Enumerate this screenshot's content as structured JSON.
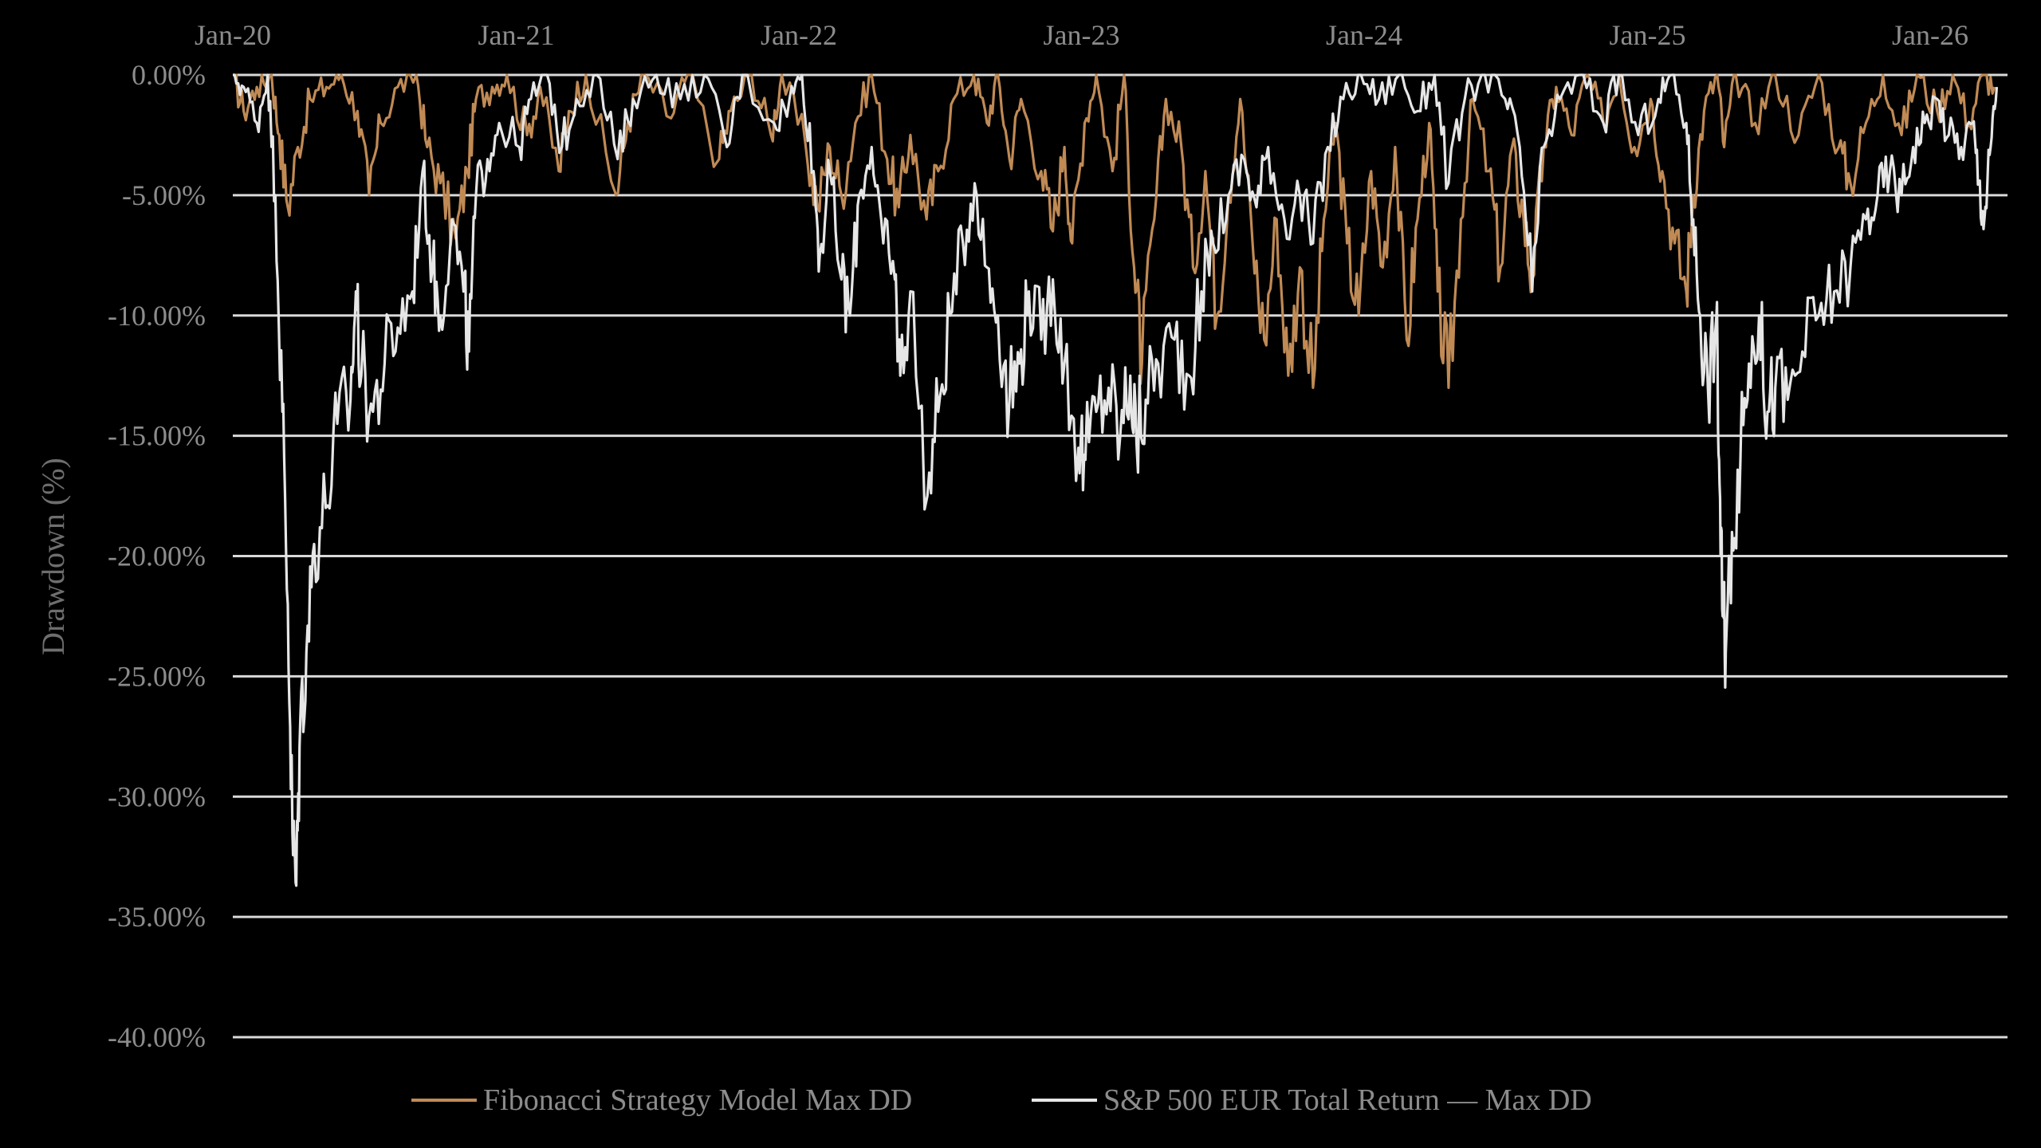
{
  "chart_data": {
    "type": "line",
    "title": "",
    "xlabel": "",
    "ylabel": "Drawdown (%)",
    "x_ticks": [
      "Jan-20",
      "Jan-21",
      "Jan-22",
      "Jan-23",
      "Jan-24",
      "Jan-25",
      "Jan-26"
    ],
    "y_ticks": [
      "0.00%",
      "-5.00%",
      "-10.00%",
      "-15.00%",
      "-20.00%",
      "-25.00%",
      "-30.00%",
      "-35.00%",
      "-40.00%"
    ],
    "xlim": [
      "2020-01-01",
      "2026-03-31"
    ],
    "ylim": [
      -40,
      0
    ],
    "grid": "horizontal",
    "legend_position": "bottom",
    "series": [
      {
        "name": "Fibonacci Strategy Model Max DD",
        "color": "#c08a55",
        "points": [
          [
            "2020-01-01",
            0
          ],
          [
            "2020-01-15",
            -1.5
          ],
          [
            "2020-02-01",
            -0.5
          ],
          [
            "2020-02-20",
            0
          ],
          [
            "2020-03-01",
            -2.5
          ],
          [
            "2020-03-12",
            -5.5
          ],
          [
            "2020-03-25",
            -3.0
          ],
          [
            "2020-04-10",
            -1.0
          ],
          [
            "2020-05-01",
            -0.5
          ],
          [
            "2020-05-20",
            0
          ],
          [
            "2020-06-10",
            -1.5
          ],
          [
            "2020-06-25",
            -5.0
          ],
          [
            "2020-07-10",
            -2.0
          ],
          [
            "2020-08-01",
            -0.5
          ],
          [
            "2020-08-25",
            0
          ],
          [
            "2020-09-08",
            -3.0
          ],
          [
            "2020-09-25",
            -4.5
          ],
          [
            "2020-10-15",
            -6.8
          ],
          [
            "2020-10-30",
            -4.0
          ],
          [
            "2020-11-10",
            -1.0
          ],
          [
            "2020-12-01",
            -0.5
          ],
          [
            "2020-12-20",
            0
          ],
          [
            "2021-01-15",
            -2.5
          ],
          [
            "2021-02-01",
            -0.5
          ],
          [
            "2021-02-25",
            -4.0
          ],
          [
            "2021-03-10",
            -1.5
          ],
          [
            "2021-04-01",
            0
          ],
          [
            "2021-05-10",
            -5.0
          ],
          [
            "2021-05-25",
            -2.0
          ],
          [
            "2021-06-15",
            0
          ],
          [
            "2021-07-20",
            -1.8
          ],
          [
            "2021-08-10",
            0
          ],
          [
            "2021-09-20",
            -3.5
          ],
          [
            "2021-10-05",
            -1.5
          ],
          [
            "2021-11-01",
            0
          ],
          [
            "2021-11-26",
            -2.5
          ],
          [
            "2021-12-10",
            0
          ],
          [
            "2022-01-10",
            -3.0
          ],
          [
            "2022-01-25",
            -5.5
          ],
          [
            "2022-02-10",
            -3.0
          ],
          [
            "2022-02-25",
            -5.0
          ],
          [
            "2022-03-15",
            -2.0
          ],
          [
            "2022-04-05",
            0
          ],
          [
            "2022-04-25",
            -3.5
          ],
          [
            "2022-05-10",
            -5.5
          ],
          [
            "2022-05-25",
            -2.5
          ],
          [
            "2022-06-15",
            -6.0
          ],
          [
            "2022-06-30",
            -4.0
          ],
          [
            "2022-07-20",
            -1.0
          ],
          [
            "2022-08-15",
            0
          ],
          [
            "2022-09-01",
            -2.0
          ],
          [
            "2022-09-15",
            0
          ],
          [
            "2022-09-30",
            -3.5
          ],
          [
            "2022-10-15",
            -1.0
          ],
          [
            "2022-11-10",
            -4.0
          ],
          [
            "2022-11-25",
            -6.5
          ],
          [
            "2022-12-10",
            -3.0
          ],
          [
            "2022-12-20",
            -7.0
          ],
          [
            "2023-01-05",
            -2.0
          ],
          [
            "2023-01-20",
            0
          ],
          [
            "2023-02-10",
            -4.0
          ],
          [
            "2023-02-25",
            0
          ],
          [
            "2023-03-10",
            -8.0
          ],
          [
            "2023-03-20",
            -12.0
          ],
          [
            "2023-04-05",
            -6.0
          ],
          [
            "2023-04-20",
            -1.0
          ],
          [
            "2023-05-10",
            -3.0
          ],
          [
            "2023-05-25",
            -8.0
          ],
          [
            "2023-06-10",
            -4.0
          ],
          [
            "2023-06-25",
            -10.0
          ],
          [
            "2023-07-10",
            -5.0
          ],
          [
            "2023-07-25",
            -1.0
          ],
          [
            "2023-08-10",
            -7.0
          ],
          [
            "2023-08-25",
            -11.0
          ],
          [
            "2023-09-10",
            -6.0
          ],
          [
            "2023-09-25",
            -12.5
          ],
          [
            "2023-10-10",
            -8.0
          ],
          [
            "2023-10-27",
            -13.0
          ],
          [
            "2023-11-10",
            -6.0
          ],
          [
            "2023-11-25",
            -2.0
          ],
          [
            "2023-12-10",
            -7.0
          ],
          [
            "2023-12-25",
            -10.0
          ],
          [
            "2024-01-10",
            -4.0
          ],
          [
            "2024-01-25",
            -8.0
          ],
          [
            "2024-02-10",
            -3.0
          ],
          [
            "2024-02-25",
            -11.0
          ],
          [
            "2024-03-10",
            -6.0
          ],
          [
            "2024-03-25",
            -2.0
          ],
          [
            "2024-04-05",
            -9.0
          ],
          [
            "2024-04-19",
            -13.0
          ],
          [
            "2024-05-05",
            -6.0
          ],
          [
            "2024-05-20",
            -1.0
          ],
          [
            "2024-06-10",
            -4.0
          ],
          [
            "2024-06-25",
            -8.0
          ],
          [
            "2024-07-10",
            -3.0
          ],
          [
            "2024-07-25",
            -6.0
          ],
          [
            "2024-08-05",
            -8.5
          ],
          [
            "2024-08-20",
            -3.0
          ],
          [
            "2024-09-05",
            -0.5
          ],
          [
            "2024-09-25",
            -2.5
          ],
          [
            "2024-10-15",
            0
          ],
          [
            "2024-11-05",
            -2.0
          ],
          [
            "2024-11-25",
            0
          ],
          [
            "2024-12-15",
            -3.0
          ],
          [
            "2025-01-05",
            -1.0
          ],
          [
            "2025-01-20",
            -4.0
          ],
          [
            "2025-02-05",
            -7.0
          ],
          [
            "2025-02-20",
            -9.0
          ],
          [
            "2025-03-01",
            -5.0
          ],
          [
            "2025-03-15",
            -1.5
          ],
          [
            "2025-04-01",
            0
          ],
          [
            "2025-04-10",
            -3.0
          ],
          [
            "2025-04-25",
            0
          ],
          [
            "2025-05-20",
            -2.0
          ],
          [
            "2025-06-15",
            0
          ],
          [
            "2025-07-15",
            -2.5
          ],
          [
            "2025-08-10",
            0
          ],
          [
            "2025-09-05",
            -3.0
          ],
          [
            "2025-09-20",
            -4.5
          ],
          [
            "2025-10-10",
            -2.0
          ],
          [
            "2025-11-01",
            0
          ],
          [
            "2025-11-25",
            -2.5
          ],
          [
            "2025-12-15",
            0
          ],
          [
            "2026-01-10",
            -1.5
          ],
          [
            "2026-01-30",
            0
          ],
          [
            "2026-02-20",
            -2.0
          ],
          [
            "2026-03-10",
            0
          ],
          [
            "2026-03-25",
            -0.5
          ]
        ]
      },
      {
        "name": "S&P 500 EUR Total Return — Max DD",
        "color": "#e6e6e6",
        "points": [
          [
            "2020-01-01",
            0
          ],
          [
            "2020-01-15",
            -0.5
          ],
          [
            "2020-02-01",
            -2.0
          ],
          [
            "2020-02-15",
            0
          ],
          [
            "2020-02-25",
            -5.0
          ],
          [
            "2020-03-05",
            -14.0
          ],
          [
            "2020-03-12",
            -22.0
          ],
          [
            "2020-03-18",
            -31.5
          ],
          [
            "2020-03-23",
            -33.7
          ],
          [
            "2020-03-28",
            -27.0
          ],
          [
            "2020-04-05",
            -24.0
          ],
          [
            "2020-04-15",
            -19.5
          ],
          [
            "2020-04-30",
            -18.0
          ],
          [
            "2020-05-15",
            -14.5
          ],
          [
            "2020-06-01",
            -13.5
          ],
          [
            "2020-06-08",
            -9.0
          ],
          [
            "2020-06-15",
            -12.5
          ],
          [
            "2020-06-30",
            -14.0
          ],
          [
            "2020-07-15",
            -12.0
          ],
          [
            "2020-08-01",
            -10.5
          ],
          [
            "2020-08-20",
            -9.0
          ],
          [
            "2020-09-02",
            -4.0
          ],
          [
            "2020-09-15",
            -8.0
          ],
          [
            "2020-09-25",
            -10.0
          ],
          [
            "2020-10-10",
            -6.0
          ],
          [
            "2020-10-25",
            -9.0
          ],
          [
            "2020-11-01",
            -11.5
          ],
          [
            "2020-11-10",
            -5.0
          ],
          [
            "2020-11-25",
            -3.5
          ],
          [
            "2020-12-10",
            -2.0
          ],
          [
            "2021-01-05",
            -3.0
          ],
          [
            "2021-01-20",
            -1.0
          ],
          [
            "2021-02-10",
            0
          ],
          [
            "2021-03-01",
            -3.0
          ],
          [
            "2021-03-20",
            -1.0
          ],
          [
            "2021-04-15",
            0
          ],
          [
            "2021-05-12",
            -3.5
          ],
          [
            "2021-06-01",
            -1.0
          ],
          [
            "2021-07-01",
            0
          ],
          [
            "2021-08-01",
            -1.0
          ],
          [
            "2021-09-01",
            0
          ],
          [
            "2021-09-30",
            -3.0
          ],
          [
            "2021-10-20",
            0
          ],
          [
            "2021-11-30",
            -2.0
          ],
          [
            "2021-12-20",
            -1.0
          ],
          [
            "2022-01-05",
            0
          ],
          [
            "2022-01-20",
            -4.0
          ],
          [
            "2022-01-28",
            -7.5
          ],
          [
            "2022-02-10",
            -4.0
          ],
          [
            "2022-02-25",
            -8.5
          ],
          [
            "2022-03-08",
            -10.0
          ],
          [
            "2022-03-20",
            -5.0
          ],
          [
            "2022-04-05",
            -3.0
          ],
          [
            "2022-04-20",
            -7.0
          ],
          [
            "2022-05-05",
            -8.5
          ],
          [
            "2022-05-12",
            -12.5
          ],
          [
            "2022-05-25",
            -9.0
          ],
          [
            "2022-06-16",
            -17.5
          ],
          [
            "2022-06-30",
            -14.0
          ],
          [
            "2022-07-15",
            -10.0
          ],
          [
            "2022-08-01",
            -7.0
          ],
          [
            "2022-08-16",
            -4.5
          ],
          [
            "2022-09-01",
            -8.0
          ],
          [
            "2022-09-15",
            -10.0
          ],
          [
            "2022-09-30",
            -13.5
          ],
          [
            "2022-10-13",
            -12.0
          ],
          [
            "2022-10-25",
            -9.0
          ],
          [
            "2022-11-10",
            -11.0
          ],
          [
            "2022-11-25",
            -8.5
          ],
          [
            "2022-12-10",
            -12.0
          ],
          [
            "2022-12-28",
            -15.5
          ],
          [
            "2023-01-06",
            -16.0
          ],
          [
            "2023-01-20",
            -14.0
          ],
          [
            "2023-02-05",
            -13.0
          ],
          [
            "2023-02-20",
            -15.0
          ],
          [
            "2023-03-05",
            -12.5
          ],
          [
            "2023-03-13",
            -15.3
          ],
          [
            "2023-03-25",
            -13.5
          ],
          [
            "2023-04-10",
            -12.0
          ],
          [
            "2023-05-01",
            -11.0
          ],
          [
            "2023-05-20",
            -12.5
          ],
          [
            "2023-06-05",
            -9.0
          ],
          [
            "2023-06-20",
            -7.0
          ],
          [
            "2023-07-10",
            -5.0
          ],
          [
            "2023-07-30",
            -3.5
          ],
          [
            "2023-08-15",
            -5.5
          ],
          [
            "2023-08-30",
            -3.0
          ],
          [
            "2023-09-20",
            -6.0
          ],
          [
            "2023-10-10",
            -5.0
          ],
          [
            "2023-10-27",
            -7.0
          ],
          [
            "2023-11-15",
            -3.0
          ],
          [
            "2023-12-05",
            -1.0
          ],
          [
            "2023-12-28",
            0
          ],
          [
            "2024-01-20",
            -1.0
          ],
          [
            "2024-02-15",
            0
          ],
          [
            "2024-03-10",
            -1.5
          ],
          [
            "2024-04-01",
            0
          ],
          [
            "2024-04-19",
            -4.5
          ],
          [
            "2024-05-10",
            -1.0
          ],
          [
            "2024-06-05",
            0
          ],
          [
            "2024-07-01",
            -1.0
          ],
          [
            "2024-07-20",
            -3.0
          ],
          [
            "2024-08-05",
            -9.0
          ],
          [
            "2024-08-20",
            -3.0
          ],
          [
            "2024-09-10",
            -1.0
          ],
          [
            "2024-10-10",
            0
          ],
          [
            "2024-11-05",
            -2.0
          ],
          [
            "2024-11-25",
            0
          ],
          [
            "2024-12-20",
            -2.5
          ],
          [
            "2025-01-15",
            -1.0
          ],
          [
            "2025-02-01",
            0
          ],
          [
            "2025-02-20",
            -2.0
          ],
          [
            "2025-03-01",
            -6.0
          ],
          [
            "2025-03-10",
            -10.0
          ],
          [
            "2025-03-20",
            -13.0
          ],
          [
            "2025-03-31",
            -10.0
          ],
          [
            "2025-04-04",
            -17.0
          ],
          [
            "2025-04-08",
            -22.5
          ],
          [
            "2025-04-12",
            -24.0
          ],
          [
            "2025-04-20",
            -19.0
          ],
          [
            "2025-05-01",
            -16.0
          ],
          [
            "2025-05-12",
            -12.0
          ],
          [
            "2025-05-25",
            -10.0
          ],
          [
            "2025-06-05",
            -14.0
          ],
          [
            "2025-06-15",
            -13.0
          ],
          [
            "2025-07-01",
            -13.5
          ],
          [
            "2025-07-20",
            -11.5
          ],
          [
            "2025-08-10",
            -10.0
          ],
          [
            "2025-08-30",
            -9.0
          ],
          [
            "2025-09-20",
            -8.0
          ],
          [
            "2025-10-10",
            -6.0
          ],
          [
            "2025-10-25",
            -5.0
          ],
          [
            "2025-11-10",
            -4.0
          ],
          [
            "2025-11-25",
            -5.0
          ],
          [
            "2025-12-10",
            -3.0
          ],
          [
            "2025-12-25",
            -2.0
          ],
          [
            "2026-01-10",
            -1.0
          ],
          [
            "2026-01-25",
            -2.5
          ],
          [
            "2026-02-10",
            -3.0
          ],
          [
            "2026-02-25",
            -2.0
          ],
          [
            "2026-03-05",
            -4.5
          ],
          [
            "2026-03-12",
            -6.0
          ],
          [
            "2026-03-20",
            -3.0
          ],
          [
            "2026-03-28",
            -0.5
          ]
        ]
      }
    ]
  }
}
